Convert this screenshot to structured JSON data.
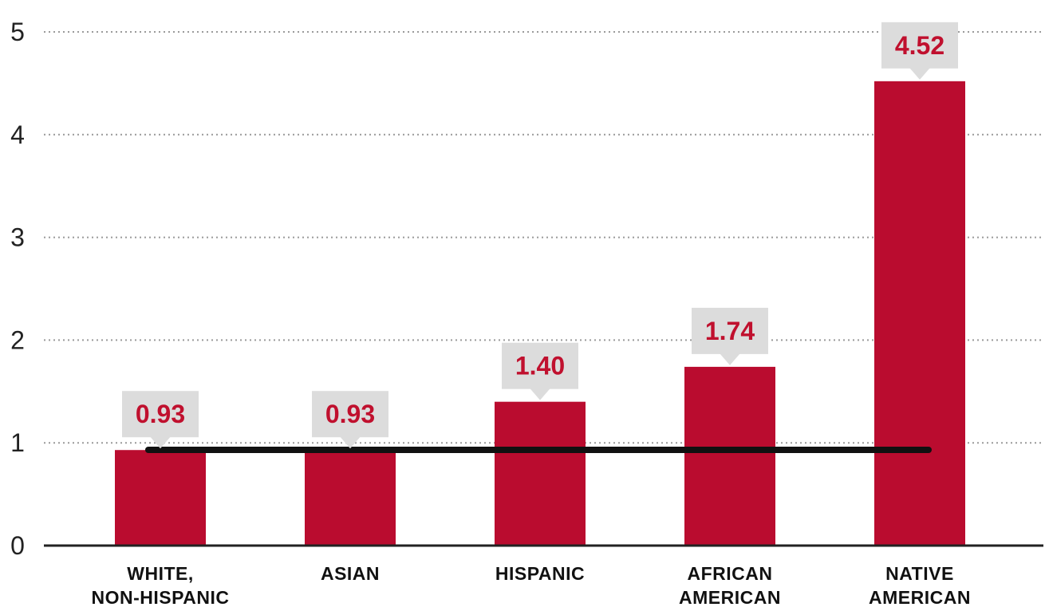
{
  "chart_data": {
    "type": "bar",
    "title": "",
    "xlabel": "",
    "ylabel": "",
    "ylim": [
      0,
      5
    ],
    "yticks": [
      "0",
      "1",
      "2",
      "3",
      "4",
      "5"
    ],
    "grid": "dotted horizontal",
    "categories": [
      [
        "WHITE,",
        "NON-HISPANIC"
      ],
      [
        "ASIAN"
      ],
      [
        "HISPANIC"
      ],
      [
        "AFRICAN",
        "AMERICAN"
      ],
      [
        "NATIVE",
        "AMERICAN"
      ]
    ],
    "values": [
      0.93,
      0.93,
      1.4,
      1.74,
      4.52
    ],
    "data_labels": [
      "0.93",
      "0.93",
      "1.40",
      "1.74",
      "4.52"
    ],
    "reference_line": 0.93,
    "colors": {
      "bar": "#ba0c2f",
      "label_text": "#c0102e",
      "label_box": "#dcdcdc",
      "reference_line": "#111111",
      "grid": "#9a9a9a",
      "axis": "#222222"
    }
  }
}
